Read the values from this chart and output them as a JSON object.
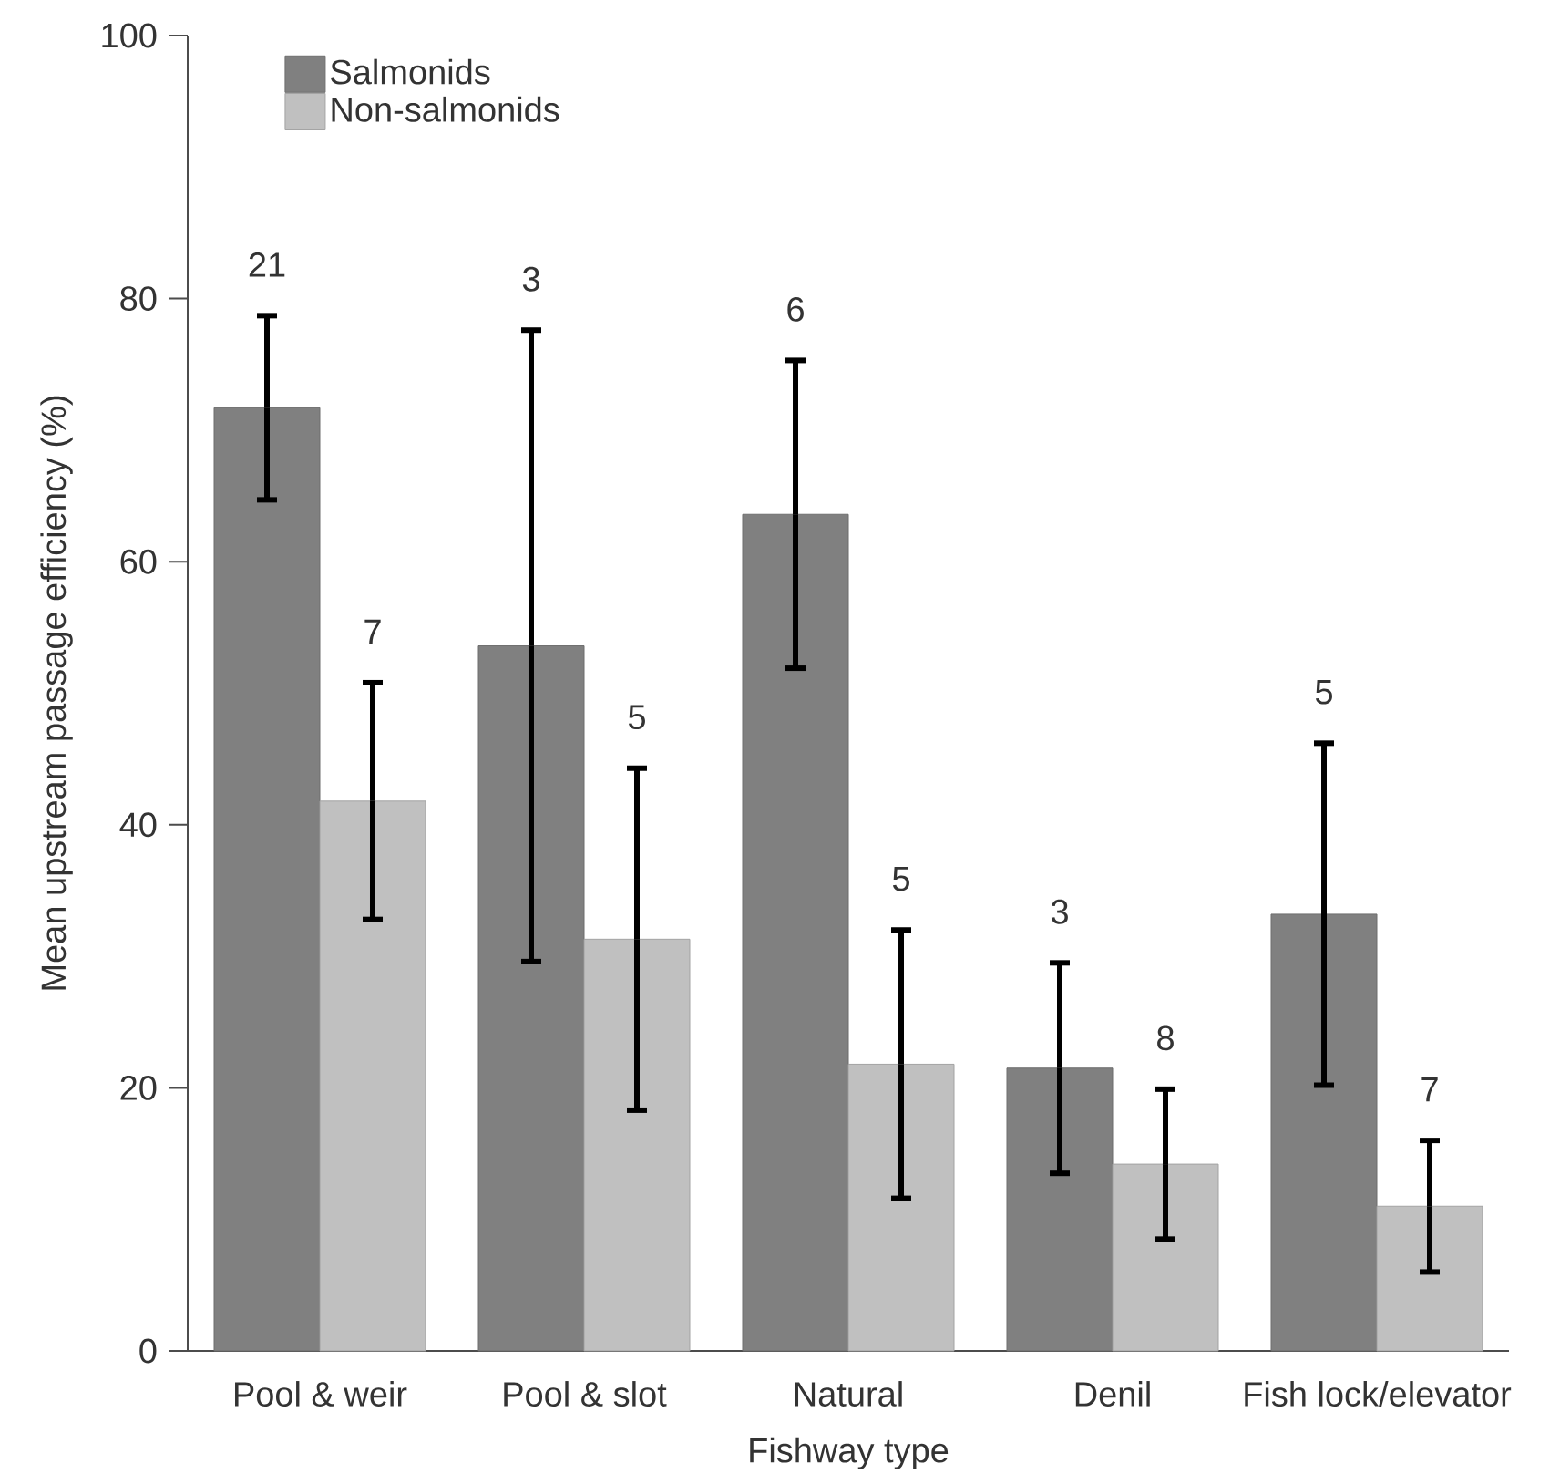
{
  "chart_data": {
    "type": "bar",
    "xlabel": "Fishway type",
    "ylabel": "Mean upstream passage efficiency (%)",
    "categories": [
      "Pool & weir",
      "Pool & slot",
      "Natural",
      "Denil",
      "Fish lock/elevator"
    ],
    "series": [
      {
        "name": "Salmonids",
        "color": "#808080",
        "values": [
          71.7,
          53.6,
          63.6,
          21.5,
          33.2
        ],
        "errors": [
          7,
          24,
          11.7,
          8,
          13
        ]
      },
      {
        "name": "Non-salmonids",
        "color": "#c0c0c0",
        "values": [
          41.8,
          31.3,
          21.8,
          14.2,
          11
        ],
        "errors": [
          9,
          13,
          10.2,
          5.7,
          5
        ]
      }
    ],
    "annotations": [
      "21",
      "7",
      "3",
      "5",
      "6",
      "5",
      "3",
      "8",
      "5",
      "7"
    ],
    "ylim": [
      0,
      100
    ],
    "yticks": [
      0,
      20,
      40,
      60,
      80,
      100
    ],
    "legend": "top left"
  }
}
